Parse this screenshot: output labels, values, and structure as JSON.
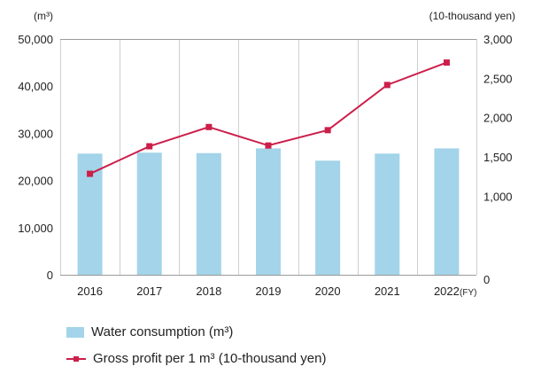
{
  "chart_data": {
    "type": "bar",
    "categories": [
      "2016",
      "2017",
      "2018",
      "2019",
      "2020",
      "2021",
      "2022"
    ],
    "x_unit_label": "(FY)",
    "left_axis": {
      "unit_label": "(m³)",
      "ylim": [
        0,
        50000
      ],
      "ticks": [
        "0",
        "10,000",
        "20,000",
        "30,000",
        "40,000",
        "50,000"
      ]
    },
    "right_axis": {
      "unit_label": "(10-thousand yen)",
      "ylim": [
        0,
        3000
      ],
      "ticks": [
        "0",
        "1,000",
        "1,500",
        "2,000",
        "2,500",
        "3,000"
      ]
    },
    "series": [
      {
        "name": "Water consumption (m³)",
        "type": "bar",
        "axis": "left",
        "color": "#a3d4e9",
        "values": [
          25700,
          25900,
          25800,
          26800,
          24200,
          25700,
          26800
        ]
      },
      {
        "name": "Gross profit per 1 m³ (10-thousand yen)",
        "type": "line",
        "axis": "right",
        "color": "#cc1f4a",
        "values": [
          1285,
          1635,
          1880,
          1645,
          1840,
          2415,
          2700
        ]
      }
    ],
    "grid": "vertical lines at category boundaries",
    "legend_position": "bottom-left"
  }
}
